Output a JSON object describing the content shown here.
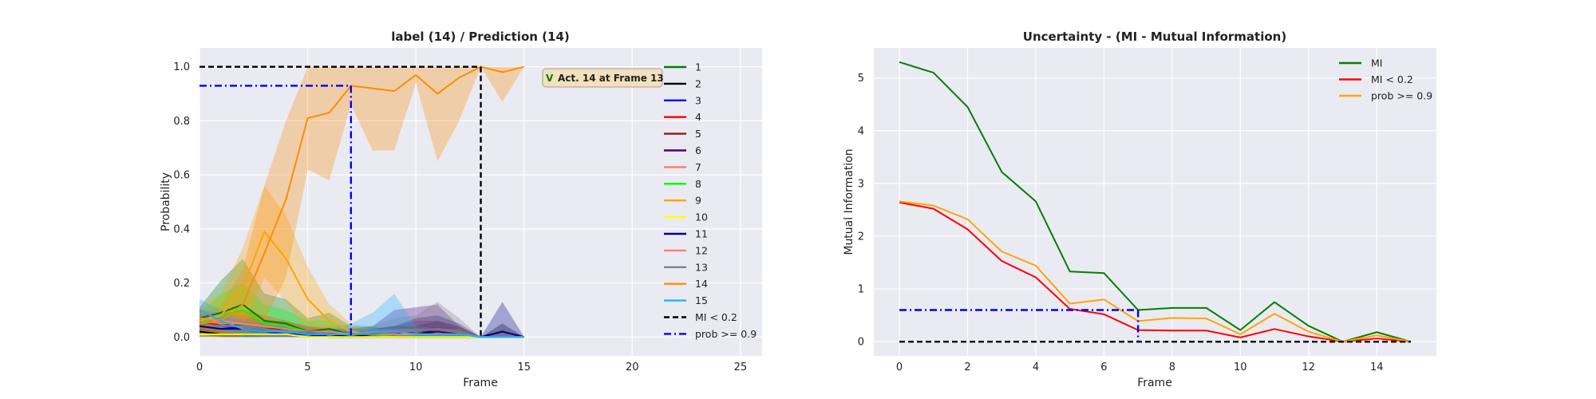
{
  "figure": {
    "left": {
      "title": "label (14) / Prediction (14)",
      "xlabel": "Frame",
      "ylabel": "Probability",
      "annotation": {
        "mark": "V",
        "text": "Act. 14 at Frame 13"
      }
    },
    "right": {
      "title": "Uncertainty - (MI - Mutual Information)",
      "xlabel": "Frame",
      "ylabel": "Mutual Information"
    }
  },
  "chart_data": [
    {
      "type": "line",
      "title": "label (14) / Prediction (14)",
      "xlabel": "Frame",
      "ylabel": "Probability",
      "xlim": [
        0,
        26
      ],
      "ylim": [
        -0.07,
        1.07
      ],
      "xticks": [
        0,
        5,
        10,
        15,
        20,
        25
      ],
      "yticks": [
        0.0,
        0.2,
        0.4,
        0.6,
        0.8,
        1.0
      ],
      "grid": true,
      "legend_position": "right",
      "x": [
        0,
        1,
        2,
        3,
        4,
        5,
        6,
        7,
        8,
        9,
        10,
        11,
        12,
        13,
        14,
        15
      ],
      "series": [
        {
          "name": "1",
          "color": "#008000",
          "values": [
            0.07,
            0.09,
            0.12,
            0.06,
            0.05,
            0.02,
            0.03,
            0.01,
            0.01,
            0.0,
            0.0,
            0.0,
            0.0,
            0.0,
            0.0,
            0.0
          ],
          "band": [
            0.04,
            0.12,
            0.17,
            0.1,
            0.09,
            0.05,
            0.06,
            0.03,
            0.03,
            0.02,
            0.02,
            0.01,
            0.01,
            0.0,
            0.0,
            0.0
          ]
        },
        {
          "name": "2",
          "color": "#000000",
          "values": [
            0.02,
            0.01,
            0.01,
            0.01,
            0.01,
            0.0,
            0.01,
            0.0,
            0.01,
            0.01,
            0.01,
            0.02,
            0.01,
            0.0,
            0.02,
            0.0
          ],
          "band": [
            0.02,
            0.02,
            0.02,
            0.02,
            0.02,
            0.01,
            0.02,
            0.01,
            0.02,
            0.03,
            0.03,
            0.04,
            0.03,
            0.0,
            0.03,
            0.0
          ]
        },
        {
          "name": "3",
          "color": "#0000ff",
          "values": [
            0.06,
            0.04,
            0.03,
            0.02,
            0.01,
            0.01,
            0.0,
            0.0,
            0.0,
            0.0,
            0.0,
            0.0,
            0.0,
            0.0,
            0.0,
            0.0
          ],
          "band": [
            0.04,
            0.04,
            0.03,
            0.02,
            0.02,
            0.01,
            0.01,
            0.0,
            0.0,
            0.0,
            0.0,
            0.0,
            0.0,
            0.0,
            0.0,
            0.0
          ]
        },
        {
          "name": "4",
          "color": "#ff0000",
          "values": [
            0.05,
            0.05,
            0.05,
            0.04,
            0.03,
            0.02,
            0.01,
            0.01,
            0.01,
            0.01,
            0.02,
            0.02,
            0.01,
            0.0,
            0.0,
            0.0
          ],
          "band": [
            0.04,
            0.04,
            0.05,
            0.04,
            0.03,
            0.02,
            0.02,
            0.02,
            0.02,
            0.03,
            0.04,
            0.04,
            0.02,
            0.0,
            0.0,
            0.0
          ]
        },
        {
          "name": "5",
          "color": "#8b1a1a",
          "values": [
            0.06,
            0.05,
            0.04,
            0.03,
            0.03,
            0.02,
            0.01,
            0.01,
            0.01,
            0.01,
            0.01,
            0.01,
            0.01,
            0.0,
            0.0,
            0.0
          ],
          "band": [
            0.04,
            0.04,
            0.04,
            0.03,
            0.03,
            0.02,
            0.02,
            0.02,
            0.02,
            0.02,
            0.02,
            0.02,
            0.02,
            0.0,
            0.0,
            0.0
          ]
        },
        {
          "name": "6",
          "color": "#4b0082",
          "values": [
            0.04,
            0.03,
            0.03,
            0.02,
            0.02,
            0.01,
            0.01,
            0.01,
            0.01,
            0.02,
            0.02,
            0.02,
            0.01,
            0.0,
            0.0,
            0.0
          ],
          "band": [
            0.04,
            0.03,
            0.03,
            0.03,
            0.03,
            0.02,
            0.02,
            0.02,
            0.03,
            0.08,
            0.09,
            0.1,
            0.03,
            0.0,
            0.0,
            0.0
          ]
        },
        {
          "name": "7",
          "color": "#ff7f50",
          "values": [
            0.06,
            0.05,
            0.05,
            0.04,
            0.03,
            0.02,
            0.02,
            0.01,
            0.01,
            0.01,
            0.01,
            0.01,
            0.01,
            0.0,
            0.0,
            0.0
          ],
          "band": [
            0.04,
            0.04,
            0.05,
            0.04,
            0.03,
            0.02,
            0.02,
            0.02,
            0.02,
            0.02,
            0.02,
            0.02,
            0.02,
            0.0,
            0.0,
            0.0
          ]
        },
        {
          "name": "8",
          "color": "#00ff00",
          "values": [
            0.05,
            0.08,
            0.1,
            0.05,
            0.04,
            0.02,
            0.02,
            0.01,
            0.01,
            0.0,
            0.0,
            0.0,
            0.0,
            0.0,
            0.0,
            0.0
          ],
          "band": [
            0.04,
            0.08,
            0.1,
            0.07,
            0.06,
            0.04,
            0.04,
            0.02,
            0.02,
            0.01,
            0.01,
            0.01,
            0.0,
            0.0,
            0.0,
            0.0
          ]
        },
        {
          "name": "9",
          "color": "#ffa500",
          "values": [
            0.06,
            0.08,
            0.18,
            0.39,
            0.29,
            0.14,
            0.06,
            0.02,
            0.01,
            0.01,
            0.01,
            0.01,
            0.01,
            0.0,
            0.0,
            0.0
          ],
          "band": [
            0.05,
            0.08,
            0.15,
            0.17,
            0.16,
            0.12,
            0.06,
            0.03,
            0.02,
            0.02,
            0.02,
            0.02,
            0.01,
            0.0,
            0.0,
            0.0
          ]
        },
        {
          "name": "10",
          "color": "#ffff00",
          "values": [
            0.01,
            0.01,
            0.01,
            0.01,
            0.01,
            0.0,
            0.0,
            0.0,
            0.0,
            0.0,
            0.0,
            0.0,
            0.0,
            0.0,
            0.0,
            0.0
          ],
          "band": [
            0.01,
            0.01,
            0.01,
            0.01,
            0.01,
            0.01,
            0.0,
            0.0,
            0.0,
            0.0,
            0.0,
            0.0,
            0.0,
            0.0,
            0.0,
            0.0
          ]
        },
        {
          "name": "11",
          "color": "#00008b",
          "values": [
            0.04,
            0.03,
            0.03,
            0.02,
            0.02,
            0.01,
            0.01,
            0.01,
            0.01,
            0.01,
            0.02,
            0.03,
            0.02,
            0.0,
            0.02,
            0.0
          ],
          "band": [
            0.03,
            0.03,
            0.03,
            0.02,
            0.02,
            0.01,
            0.01,
            0.01,
            0.02,
            0.03,
            0.05,
            0.05,
            0.03,
            0.0,
            0.11,
            0.0
          ]
        },
        {
          "name": "12",
          "color": "#fa8072",
          "values": [
            0.07,
            0.06,
            0.05,
            0.04,
            0.03,
            0.02,
            0.02,
            0.01,
            0.01,
            0.01,
            0.01,
            0.01,
            0.01,
            0.0,
            0.0,
            0.0
          ],
          "band": [
            0.04,
            0.04,
            0.04,
            0.04,
            0.03,
            0.02,
            0.02,
            0.02,
            0.02,
            0.02,
            0.02,
            0.02,
            0.02,
            0.0,
            0.0,
            0.0
          ]
        },
        {
          "name": "13",
          "color": "#808080",
          "values": [
            0.05,
            0.04,
            0.04,
            0.03,
            0.02,
            0.02,
            0.01,
            0.01,
            0.01,
            0.02,
            0.02,
            0.03,
            0.02,
            0.0,
            0.0,
            0.0
          ],
          "band": [
            0.03,
            0.03,
            0.03,
            0.03,
            0.02,
            0.02,
            0.02,
            0.02,
            0.03,
            0.05,
            0.06,
            0.1,
            0.05,
            0.0,
            0.0,
            0.0
          ]
        },
        {
          "name": "14",
          "color": "#ff8c00",
          "values": [
            0.05,
            0.06,
            0.12,
            0.31,
            0.51,
            0.81,
            0.83,
            0.93,
            0.92,
            0.91,
            0.97,
            0.9,
            0.96,
            1.0,
            0.98,
            1.0
          ],
          "band": [
            0.03,
            0.06,
            0.13,
            0.25,
            0.29,
            0.19,
            0.25,
            0.07,
            0.23,
            0.22,
            0.03,
            0.25,
            0.16,
            0.0,
            0.11,
            0.0
          ]
        },
        {
          "name": "15",
          "color": "#1ab2ff",
          "values": [
            0.1,
            0.06,
            0.03,
            0.02,
            0.02,
            0.01,
            0.01,
            0.01,
            0.02,
            0.02,
            0.01,
            0.01,
            0.01,
            0.0,
            0.0,
            0.0
          ],
          "band": [
            0.04,
            0.04,
            0.03,
            0.02,
            0.02,
            0.01,
            0.02,
            0.04,
            0.07,
            0.14,
            0.03,
            0.02,
            0.01,
            0.0,
            0.0,
            0.0
          ]
        }
      ],
      "reference_lines": [
        {
          "name": "MI < 0.2",
          "color": "#000000",
          "dash": "dashed",
          "value": 1.0,
          "x_range": [
            0,
            13
          ],
          "drop_at": 13
        },
        {
          "name": "prob >= 0.9",
          "color": "#0000ff",
          "dash": "dashdot",
          "value": 0.93,
          "x_range": [
            0,
            7
          ],
          "drop_at": 7
        }
      ]
    },
    {
      "type": "line",
      "title": "Uncertainty - (MI - Mutual Information)",
      "xlabel": "Frame",
      "ylabel": "Mutual Information",
      "xlim": [
        -0.75,
        15.75
      ],
      "ylim": [
        -0.27,
        5.57
      ],
      "xticks": [
        0,
        2,
        4,
        6,
        8,
        10,
        12,
        14
      ],
      "yticks": [
        0,
        1,
        2,
        3,
        4,
        5
      ],
      "grid": true,
      "legend_position": "upper right",
      "x": [
        0,
        1,
        2,
        3,
        4,
        5,
        6,
        7,
        8,
        9,
        10,
        11,
        12,
        13,
        14,
        15
      ],
      "series": [
        {
          "name": "MI",
          "color": "#008000",
          "values": [
            5.3,
            5.1,
            4.45,
            3.22,
            2.66,
            1.33,
            1.3,
            0.6,
            0.64,
            0.64,
            0.22,
            0.75,
            0.3,
            0.0,
            0.18,
            0.0
          ]
        },
        {
          "name": "MI < 0.2",
          "color": "#ff0000",
          "values": [
            2.64,
            2.52,
            2.13,
            1.53,
            1.22,
            0.62,
            0.52,
            0.22,
            0.21,
            0.21,
            0.08,
            0.24,
            0.1,
            0.0,
            0.06,
            0.0
          ]
        },
        {
          "name": "prob >= 0.9",
          "color": "#ffa500",
          "values": [
            2.66,
            2.58,
            2.32,
            1.71,
            1.44,
            0.72,
            0.8,
            0.39,
            0.45,
            0.44,
            0.14,
            0.53,
            0.19,
            0.0,
            0.12,
            0.0
          ]
        }
      ],
      "reference_lines": [
        {
          "color": "#000000",
          "dash": "dashed",
          "value": 0.0,
          "x_range": [
            0,
            15
          ]
        },
        {
          "color": "#0000ff",
          "dash": "dashdot",
          "value": 0.6,
          "x_range": [
            0,
            7
          ],
          "drop_at": 7
        }
      ]
    }
  ]
}
